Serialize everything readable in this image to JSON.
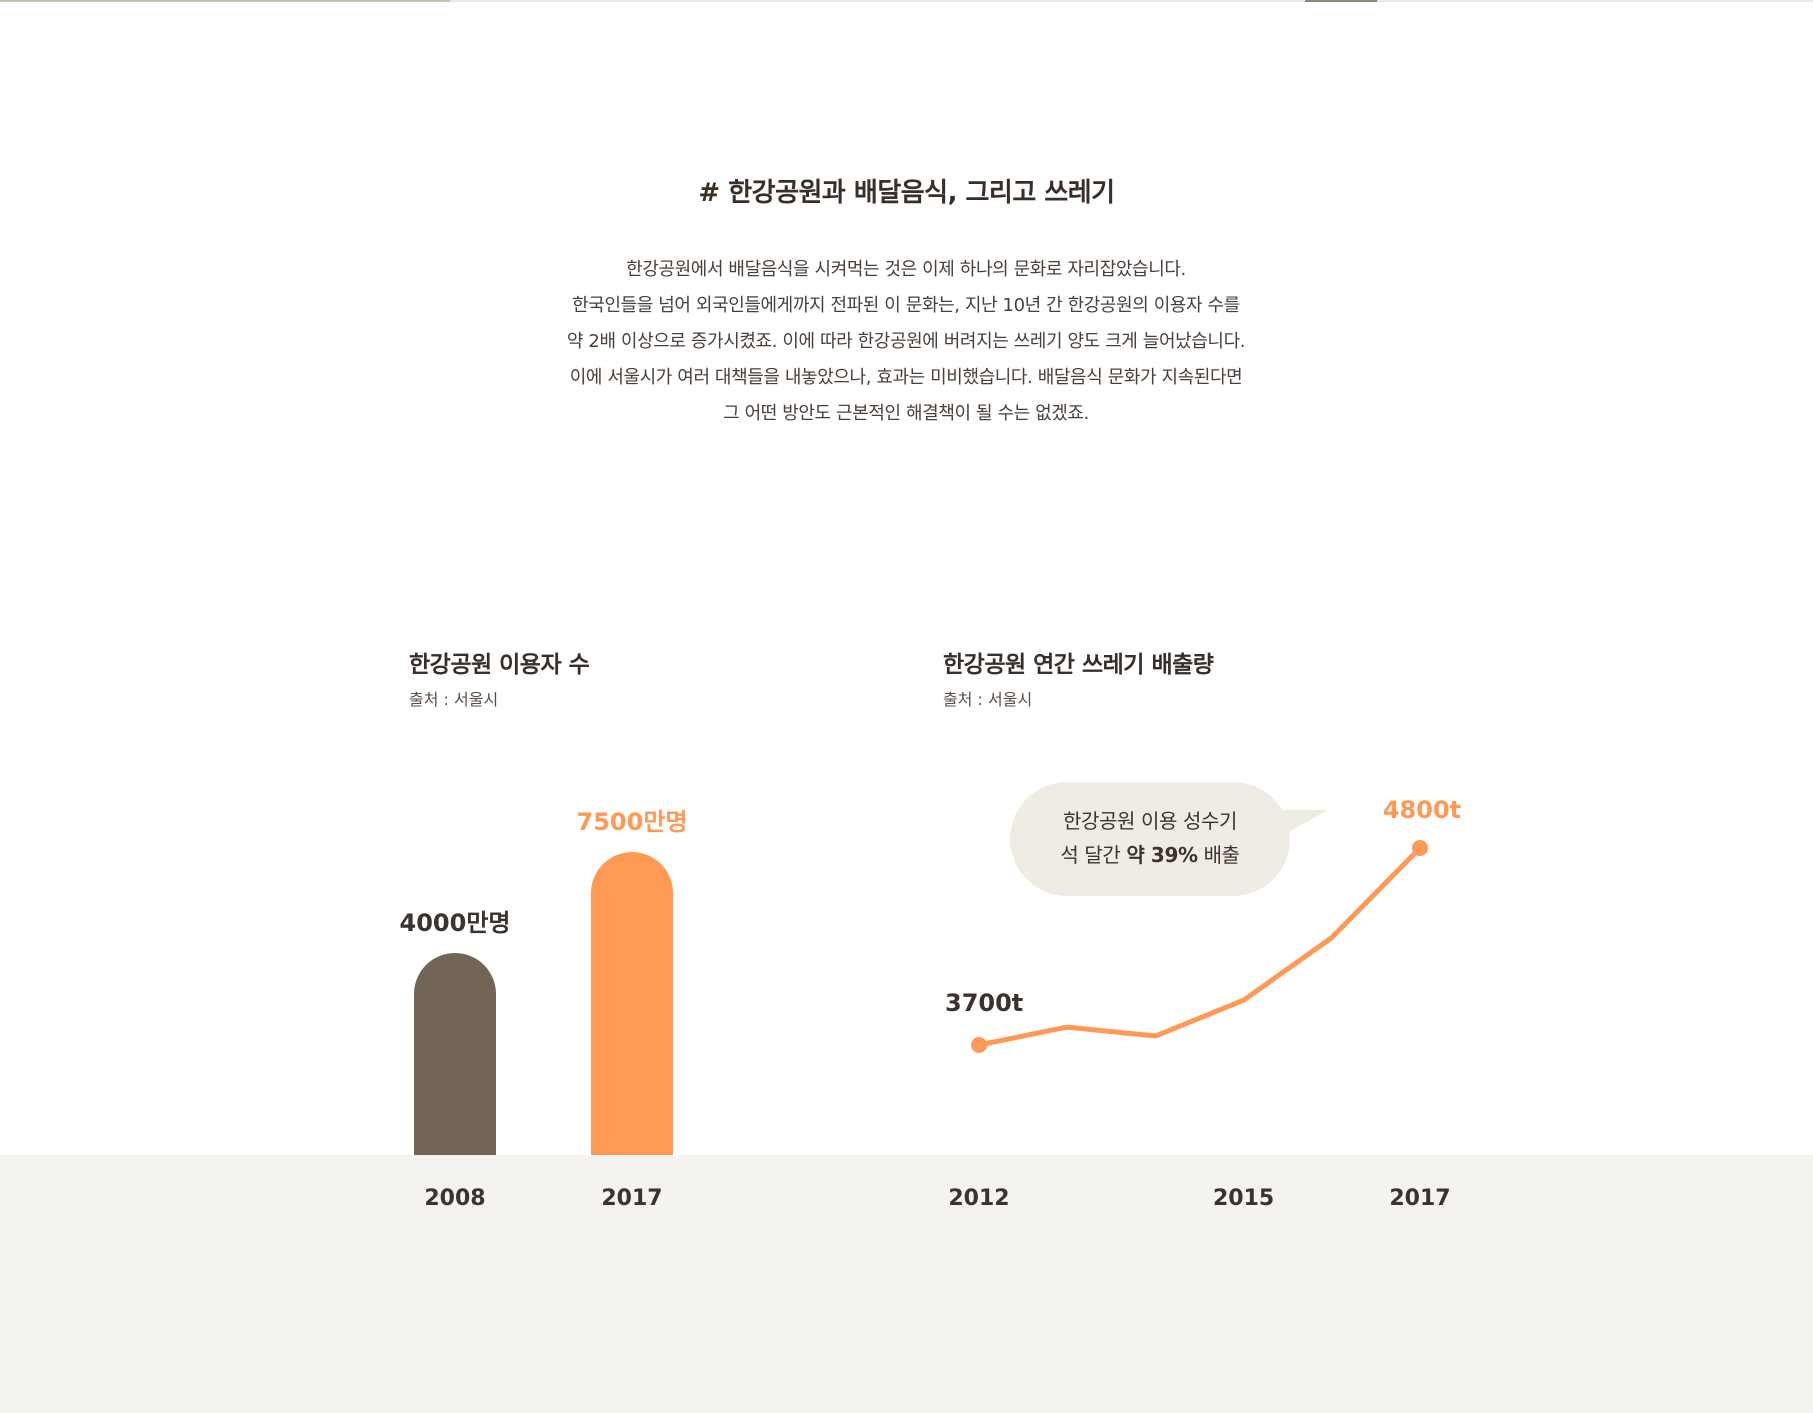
{
  "section": {
    "title": "# 한강공원과 배달음식, 그리고 쓰레기",
    "paragraph": [
      "한강공원에서 배달음식을 시켜먹는 것은 이제 하나의 문화로 자리잡았습니다.",
      "한국인들을 넘어 외국인들에게까지 전파된 이 문화는, 지난 10년 간 한강공원의 이용자 수를",
      "약 2배 이상으로 증가시켰죠. 이에 따라 한강공원에 버려지는 쓰레기 양도 크게 늘어났습니다.",
      "이에 서울시가 여러 대책들을 내놓았으나, 효과는 미비했습니다. 배달음식 문화가 지속된다면",
      "그 어떤 방안도 근본적인 해결책이 될 수는 없겠죠."
    ]
  },
  "colors": {
    "accent": "#ff9955",
    "bar_dark": "#726457",
    "text_dark": "#3d322c",
    "band": "#f4f3ef",
    "bubble": "#efece3"
  },
  "chart_data": [
    {
      "type": "bar",
      "title": "한강공원 이용자 수",
      "source": "출처 : 서울시",
      "categories": [
        "2008",
        "2017"
      ],
      "values": [
        4000,
        7500
      ],
      "value_labels": [
        "4000만명",
        "7500만명"
      ],
      "highlight_index": 1,
      "unit": "만명",
      "ylim": [
        0,
        8000
      ]
    },
    {
      "type": "line",
      "title": "한강공원 연간 쓰레기 배출량",
      "source": "출처 : 서울시",
      "x": [
        2012,
        2013,
        2014,
        2015,
        2016,
        2017
      ],
      "tick_labels": [
        "2012",
        "2015",
        "2017"
      ],
      "tick_x": [
        2012,
        2015,
        2017
      ],
      "values": [
        3700,
        3800,
        3750,
        3950,
        4300,
        4800
      ],
      "endpoint_labels": [
        "3700t",
        "4800t"
      ],
      "unit": "t",
      "callout_lines": [
        "한강공원 이용 성수기",
        "석 달간",
        "약 39%",
        "배출"
      ]
    }
  ]
}
